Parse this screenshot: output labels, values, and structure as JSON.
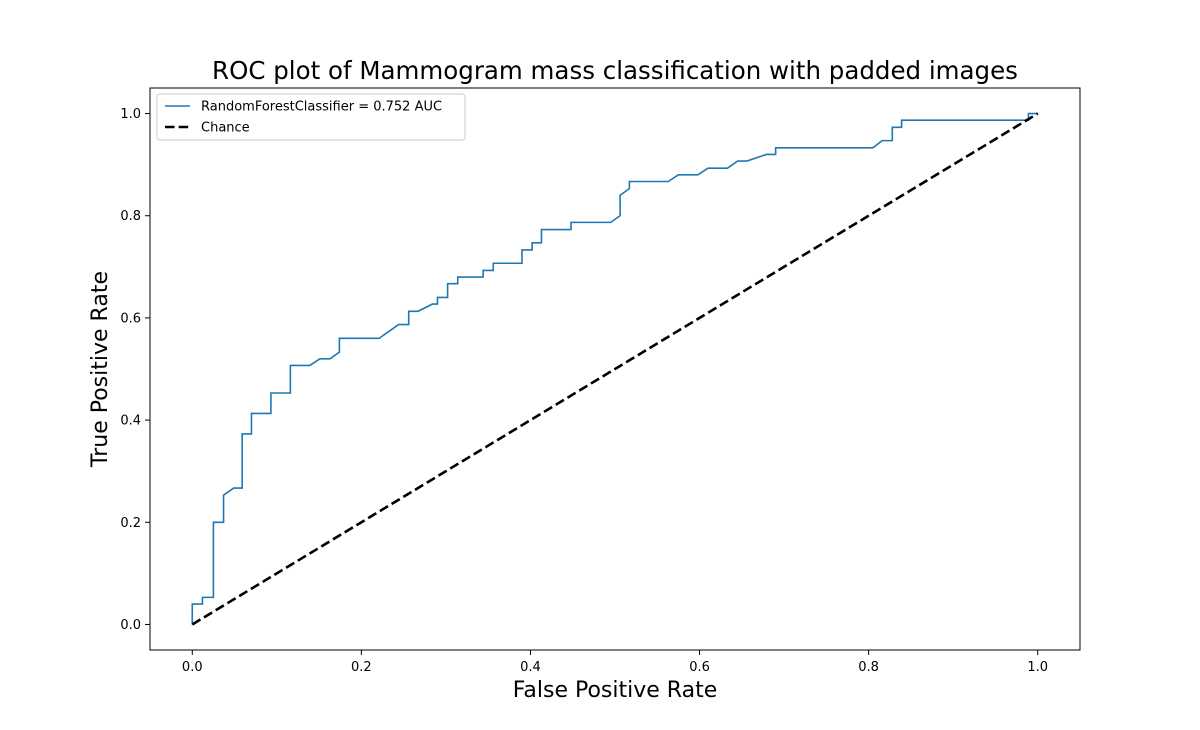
{
  "chart_data": {
    "type": "line",
    "title": "ROC plot of Mammogram mass classification with padded images",
    "xlabel": "False Positive Rate",
    "ylabel": "True Positive Rate",
    "xlim": [
      -0.05,
      1.05
    ],
    "ylim": [
      -0.05,
      1.05
    ],
    "xticks": [
      0.0,
      0.2,
      0.4,
      0.6,
      0.8,
      1.0
    ],
    "yticks": [
      0.0,
      0.2,
      0.4,
      0.6,
      0.8,
      1.0
    ],
    "grid": false,
    "legend_position": "top-left",
    "series": [
      {
        "name": "RandomForestClassifier = 0.752 AUC",
        "color": "#1f77b4",
        "style": "solid",
        "x": [
          0.0,
          0.0,
          0.012,
          0.012,
          0.025,
          0.025,
          0.037,
          0.037,
          0.049,
          0.059,
          0.059,
          0.07,
          0.07,
          0.093,
          0.093,
          0.116,
          0.116,
          0.139,
          0.151,
          0.163,
          0.174,
          0.174,
          0.221,
          0.244,
          0.256,
          0.256,
          0.267,
          0.284,
          0.29,
          0.29,
          0.302,
          0.302,
          0.314,
          0.314,
          0.344,
          0.344,
          0.356,
          0.356,
          0.39,
          0.39,
          0.402,
          0.402,
          0.413,
          0.413,
          0.448,
          0.448,
          0.495,
          0.506,
          0.506,
          0.517,
          0.517,
          0.563,
          0.575,
          0.598,
          0.61,
          0.633,
          0.645,
          0.656,
          0.679,
          0.69,
          0.69,
          0.805,
          0.816,
          0.828,
          0.828,
          0.839,
          0.839,
          0.989,
          0.989,
          1.0
        ],
        "y": [
          0.0,
          0.04,
          0.04,
          0.053,
          0.053,
          0.2,
          0.2,
          0.253,
          0.267,
          0.267,
          0.373,
          0.373,
          0.413,
          0.413,
          0.453,
          0.453,
          0.507,
          0.507,
          0.52,
          0.52,
          0.533,
          0.56,
          0.56,
          0.587,
          0.587,
          0.613,
          0.613,
          0.627,
          0.627,
          0.64,
          0.64,
          0.667,
          0.667,
          0.68,
          0.68,
          0.693,
          0.693,
          0.707,
          0.707,
          0.733,
          0.733,
          0.747,
          0.747,
          0.773,
          0.773,
          0.787,
          0.787,
          0.8,
          0.84,
          0.853,
          0.867,
          0.867,
          0.88,
          0.88,
          0.893,
          0.893,
          0.907,
          0.907,
          0.92,
          0.92,
          0.933,
          0.933,
          0.947,
          0.947,
          0.973,
          0.973,
          0.987,
          0.987,
          1.0,
          1.0
        ]
      },
      {
        "name": "Chance",
        "color": "#000000",
        "style": "dashed",
        "x": [
          0.0,
          1.0
        ],
        "y": [
          0.0,
          1.0
        ]
      }
    ]
  }
}
